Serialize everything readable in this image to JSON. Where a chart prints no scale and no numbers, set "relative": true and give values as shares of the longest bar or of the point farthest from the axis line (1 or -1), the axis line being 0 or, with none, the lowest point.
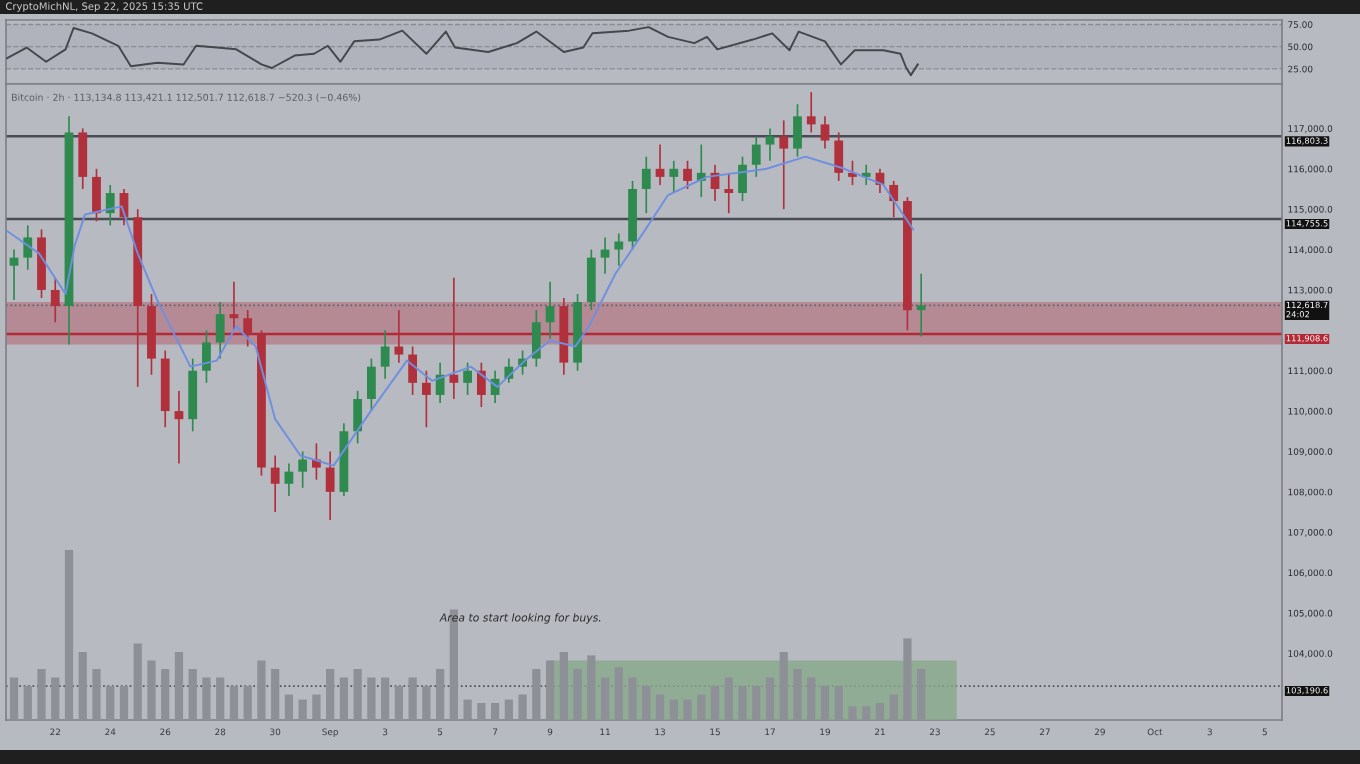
{
  "chart_data": [
    {
      "type": "line",
      "title": "CryptoMichNL, Sep 22, 2025 15:35 UTC",
      "xlim": [
        "2025-08-20T05:00",
        "2025-10-05T15:00"
      ],
      "ylim": [
        8,
        80
      ],
      "yticks": [
        {
          "value": 25,
          "label": "25.00"
        },
        {
          "value": 50,
          "label": "50.00"
        },
        {
          "value": 75,
          "label": "75.00"
        }
      ],
      "grid": "y",
      "tick_labels": "y",
      "bands": [
        {
          "axis": "y",
          "from": 25,
          "to": 75,
          "color": "#aeb0b8"
        }
      ],
      "series": [
        {
          "color": "#45474d",
          "x": [
            "2025-08-20T06:00",
            "2025-08-20T23:00",
            "2025-08-21T16:00",
            "2025-08-22T09:00",
            "2025-08-22T16:00",
            "2025-08-23T08:00",
            "2025-08-24T07:00",
            "2025-08-24T18:00",
            "2025-08-25T17:00",
            "2025-08-26T16:00",
            "2025-08-27T03:00",
            "2025-08-27T21:00",
            "2025-08-28T14:00",
            "2025-08-29T12:00",
            "2025-08-29T21:00",
            "2025-08-30T17:00",
            "2025-08-31T10:00",
            "2025-08-31T22:00",
            "2025-09-01T09:00",
            "2025-09-01T21:00",
            "2025-09-02T19:00",
            "2025-09-03T15:00",
            "2025-09-04T12:00",
            "2025-09-05T05:00",
            "2025-09-05T13:00",
            "2025-09-06T18:00",
            "2025-09-07T19:00",
            "2025-09-08T12:00",
            "2025-09-09T12:00",
            "2025-09-10T05:00",
            "2025-09-10T13:00",
            "2025-09-11T21:00",
            "2025-09-12T14:00",
            "2025-09-13T07:00",
            "2025-09-14T06:00",
            "2025-09-14T17:00",
            "2025-09-15T02:00",
            "2025-09-16T09:00",
            "2025-09-17T02:00",
            "2025-09-17T17:00",
            "2025-09-18T01:00",
            "2025-09-19T00:00",
            "2025-09-19T14:00",
            "2025-09-20T02:00",
            "2025-09-21T03:00",
            "2025-09-21T18:00",
            "2025-09-21T23:00",
            "2025-09-22T03:00",
            "2025-09-22T09:00"
          ],
          "values": [
            37,
            49,
            33,
            47,
            71,
            65,
            51,
            28,
            32,
            30,
            51,
            49,
            47,
            30,
            26,
            40,
            42,
            51,
            33,
            56,
            58,
            68,
            42,
            67,
            49,
            44,
            54,
            67,
            44,
            49,
            65,
            68,
            72,
            61,
            54,
            61,
            47,
            58,
            65,
            46,
            67,
            56,
            30,
            46,
            46,
            42,
            26,
            18,
            30
          ]
        }
      ]
    },
    {
      "type": "candlestick",
      "subtitle": "Bitcoin · 2h · 113,134.8 113,421.1 112,501.7 112,618.7 −520.3 (−0.46%)",
      "xlim": [
        "2025-08-20T05:00",
        "2025-10-05T15:00"
      ],
      "ylim": [
        102350,
        118100
      ],
      "xticks": [
        {
          "value": "2025-08-22",
          "label": "22"
        },
        {
          "value": "2025-08-24",
          "label": "24"
        },
        {
          "value": "2025-08-26",
          "label": "26"
        },
        {
          "value": "2025-08-28",
          "label": "28"
        },
        {
          "value": "2025-08-30",
          "label": "30"
        },
        {
          "value": "2025-09-01",
          "label": "Sep"
        },
        {
          "value": "2025-09-03",
          "label": "3"
        },
        {
          "value": "2025-09-05",
          "label": "5"
        },
        {
          "value": "2025-09-07",
          "label": "7"
        },
        {
          "value": "2025-09-09",
          "label": "9"
        },
        {
          "value": "2025-09-11",
          "label": "11"
        },
        {
          "value": "2025-09-13",
          "label": "13"
        },
        {
          "value": "2025-09-15",
          "label": "15"
        },
        {
          "value": "2025-09-17",
          "label": "17"
        },
        {
          "value": "2025-09-19",
          "label": "19"
        },
        {
          "value": "2025-09-21",
          "label": "21"
        },
        {
          "value": "2025-09-23",
          "label": "23"
        },
        {
          "value": "2025-09-25",
          "label": "25"
        },
        {
          "value": "2025-09-27",
          "label": "27"
        },
        {
          "value": "2025-09-29",
          "label": "29"
        },
        {
          "value": "2025-10-01",
          "label": "Oct"
        },
        {
          "value": "2025-10-03",
          "label": "3"
        },
        {
          "value": "2025-10-05",
          "label": "5"
        }
      ],
      "yticks": [
        {
          "value": 104000,
          "label": "104,000.0"
        },
        {
          "value": 105000,
          "label": "105,000.0"
        },
        {
          "value": 106000,
          "label": "106,000.0"
        },
        {
          "value": 107000,
          "label": "107,000.0"
        },
        {
          "value": 108000,
          "label": "108,000.0"
        },
        {
          "value": 109000,
          "label": "109,000.0"
        },
        {
          "value": 110000,
          "label": "110,000.0"
        },
        {
          "value": 111000,
          "label": "111,000.0"
        },
        {
          "value": 113000,
          "label": "113,000.0"
        },
        {
          "value": 114000,
          "label": "114,000.0"
        },
        {
          "value": 115000,
          "label": "115,000.0"
        },
        {
          "value": 116000,
          "label": "116,000.0"
        },
        {
          "value": 117000,
          "label": "117,000.0"
        }
      ],
      "grid": false,
      "bands": [
        {
          "axis": "y",
          "from": 111650,
          "to": 112700,
          "color": "#b57a84"
        }
      ],
      "ref_lines": [
        {
          "axis": "y",
          "value": 116803.3,
          "label": "116,803.3",
          "color": "#4a4c55",
          "line_style": "solid"
        },
        {
          "axis": "y",
          "value": 114755.5,
          "label": "114,755.5",
          "color": "#4a4c55",
          "line_style": "solid"
        },
        {
          "axis": "y",
          "value": 112618.7,
          "label": "112,618.7\n24:02",
          "color": "#5d6068",
          "line_style": "dotted"
        },
        {
          "axis": "y",
          "value": 111908.6,
          "label": "111,908.6",
          "color": "#b22a36",
          "line_style": "solid"
        },
        {
          "axis": "y",
          "value": 103190.6,
          "label": "103,190.6",
          "color": "#4e5058",
          "line_style": "dotted"
        }
      ],
      "x": [
        "2025-08-20T12:00",
        "2025-08-21T00:00",
        "2025-08-21T12:00",
        "2025-08-22T00:00",
        "2025-08-22T12:00",
        "2025-08-23T00:00",
        "2025-08-23T12:00",
        "2025-08-24T00:00",
        "2025-08-24T12:00",
        "2025-08-25T00:00",
        "2025-08-25T12:00",
        "2025-08-26T00:00",
        "2025-08-26T12:00",
        "2025-08-27T00:00",
        "2025-08-27T12:00",
        "2025-08-28T00:00",
        "2025-08-28T12:00",
        "2025-08-29T00:00",
        "2025-08-29T12:00",
        "2025-08-30T00:00",
        "2025-08-30T12:00",
        "2025-08-31T00:00",
        "2025-08-31T12:00",
        "2025-09-01T00:00",
        "2025-09-01T12:00",
        "2025-09-02T00:00",
        "2025-09-02T12:00",
        "2025-09-03T00:00",
        "2025-09-03T12:00",
        "2025-09-04T00:00",
        "2025-09-04T12:00",
        "2025-09-05T00:00",
        "2025-09-05T12:00",
        "2025-09-06T00:00",
        "2025-09-06T12:00",
        "2025-09-07T00:00",
        "2025-09-07T12:00",
        "2025-09-08T00:00",
        "2025-09-08T12:00",
        "2025-09-09T00:00",
        "2025-09-09T12:00",
        "2025-09-10T00:00",
        "2025-09-10T12:00",
        "2025-09-11T00:00",
        "2025-09-11T12:00",
        "2025-09-12T00:00",
        "2025-09-12T12:00",
        "2025-09-13T00:00",
        "2025-09-13T12:00",
        "2025-09-14T00:00",
        "2025-09-14T12:00",
        "2025-09-15T00:00",
        "2025-09-15T12:00",
        "2025-09-16T00:00",
        "2025-09-16T12:00",
        "2025-09-17T00:00",
        "2025-09-17T12:00",
        "2025-09-18T00:00",
        "2025-09-18T12:00",
        "2025-09-19T00:00",
        "2025-09-19T12:00",
        "2025-09-20T00:00",
        "2025-09-20T12:00",
        "2025-09-21T00:00",
        "2025-09-21T12:00",
        "2025-09-22T00:00",
        "2025-09-22T12:00"
      ],
      "ohlc": [
        [
          113600,
          114000,
          112750,
          113800
        ],
        [
          113800,
          114600,
          113500,
          114300
        ],
        [
          114300,
          114500,
          112800,
          113000
        ],
        [
          113000,
          113300,
          112200,
          112600
        ],
        [
          112600,
          117300,
          111650,
          116900
        ],
        [
          116900,
          117000,
          115500,
          115800
        ],
        [
          115800,
          116000,
          114700,
          114900
        ],
        [
          114900,
          115600,
          114600,
          115400
        ],
        [
          115400,
          115500,
          114600,
          114800
        ],
        [
          114800,
          115000,
          110600,
          112600
        ],
        [
          112600,
          112900,
          110900,
          111300
        ],
        [
          111300,
          111500,
          109600,
          110000
        ],
        [
          110000,
          110500,
          108700,
          109800
        ],
        [
          109800,
          111300,
          109500,
          111000
        ],
        [
          111000,
          112000,
          110700,
          111700
        ],
        [
          111700,
          112700,
          111300,
          112400
        ],
        [
          112400,
          113200,
          112000,
          112300
        ],
        [
          112300,
          112500,
          111600,
          111900
        ],
        [
          111900,
          112000,
          108400,
          108600
        ],
        [
          108600,
          108900,
          107500,
          108200
        ],
        [
          108200,
          108700,
          107900,
          108500
        ],
        [
          108500,
          109000,
          108100,
          108800
        ],
        [
          108800,
          109200,
          108300,
          108600
        ],
        [
          108600,
          109000,
          107300,
          108000
        ],
        [
          108000,
          109700,
          107900,
          109500
        ],
        [
          109500,
          110500,
          109200,
          110300
        ],
        [
          110300,
          111300,
          110000,
          111100
        ],
        [
          111100,
          112000,
          110800,
          111600
        ],
        [
          111600,
          112500,
          111200,
          111400
        ],
        [
          111400,
          111600,
          110400,
          110700
        ],
        [
          110700,
          111000,
          109600,
          110400
        ],
        [
          110400,
          111200,
          110200,
          110900
        ],
        [
          110900,
          113300,
          110300,
          110700
        ],
        [
          110700,
          111200,
          110400,
          111000
        ],
        [
          111000,
          111200,
          110100,
          110400
        ],
        [
          110400,
          111000,
          110200,
          110800
        ],
        [
          110800,
          111300,
          110700,
          111100
        ],
        [
          111100,
          111500,
          110900,
          111300
        ],
        [
          111300,
          112500,
          111100,
          112200
        ],
        [
          112200,
          113200,
          111800,
          112600
        ],
        [
          112600,
          112800,
          110900,
          111200
        ],
        [
          111200,
          112900,
          111000,
          112700
        ],
        [
          112700,
          114000,
          112500,
          113800
        ],
        [
          113800,
          114300,
          113400,
          114000
        ],
        [
          114000,
          114400,
          113600,
          114200
        ],
        [
          114200,
          115700,
          114000,
          115500
        ],
        [
          115500,
          116300,
          114900,
          116000
        ],
        [
          116000,
          116600,
          115600,
          115800
        ],
        [
          115800,
          116200,
          115400,
          116000
        ],
        [
          116000,
          116200,
          115500,
          115700
        ],
        [
          115700,
          116600,
          115300,
          115900
        ],
        [
          115900,
          116100,
          115200,
          115500
        ],
        [
          115500,
          115900,
          114900,
          115400
        ],
        [
          115400,
          116300,
          115200,
          116100
        ],
        [
          116100,
          116800,
          115800,
          116600
        ],
        [
          116600,
          117000,
          116200,
          116800
        ],
        [
          116800,
          117200,
          115000,
          116500
        ],
        [
          116500,
          117600,
          116300,
          117300
        ],
        [
          117300,
          117900,
          116900,
          117100
        ],
        [
          117100,
          117300,
          116500,
          116700
        ],
        [
          116700,
          116900,
          115700,
          115900
        ],
        [
          115900,
          116200,
          115600,
          115800
        ],
        [
          115800,
          116100,
          115600,
          115900
        ],
        [
          115900,
          116000,
          115400,
          115600
        ],
        [
          115600,
          115700,
          114800,
          115200
        ],
        [
          115200,
          115300,
          112000,
          112500
        ],
        [
          112500,
          113400,
          111850,
          112618.7
        ]
      ],
      "colors": [
        "#2e8a4e",
        "#2e8a4e",
        "#b0303c",
        "#b0303c",
        "#2e8a4e",
        "#b0303c",
        "#b0303c",
        "#2e8a4e",
        "#b0303c",
        "#b0303c",
        "#b0303c",
        "#b0303c",
        "#b0303c",
        "#2e8a4e",
        "#2e8a4e",
        "#2e8a4e",
        "#b0303c",
        "#b0303c",
        "#b0303c",
        "#b0303c",
        "#2e8a4e",
        "#2e8a4e",
        "#b0303c",
        "#b0303c",
        "#2e8a4e",
        "#2e8a4e",
        "#2e8a4e",
        "#2e8a4e",
        "#b0303c",
        "#b0303c",
        "#b0303c",
        "#2e8a4e",
        "#b0303c",
        "#2e8a4e",
        "#b0303c",
        "#2e8a4e",
        "#2e8a4e",
        "#2e8a4e",
        "#2e8a4e",
        "#2e8a4e",
        "#b0303c",
        "#2e8a4e",
        "#2e8a4e",
        "#2e8a4e",
        "#2e8a4e",
        "#2e8a4e",
        "#2e8a4e",
        "#b0303c",
        "#2e8a4e",
        "#b0303c",
        "#2e8a4e",
        "#b0303c",
        "#b0303c",
        "#2e8a4e",
        "#2e8a4e",
        "#2e8a4e",
        "#b0303c",
        "#2e8a4e",
        "#b0303c",
        "#b0303c",
        "#b0303c",
        "#b0303c",
        "#2e8a4e",
        "#b0303c",
        "#b0303c",
        "#b0303c",
        "#2e8a4e"
      ],
      "series": [
        {
          "type": "line",
          "color": "#6f8fe0",
          "x": [
            "2025-08-20T05:00",
            "2025-08-21T10:00",
            "2025-08-22T09:00",
            "2025-08-22T17:00",
            "2025-08-23T02:00",
            "2025-08-24T10:00",
            "2025-08-25T00:00",
            "2025-08-25T17:00",
            "2025-08-26T22:00",
            "2025-08-27T21:00",
            "2025-08-28T14:00",
            "2025-08-29T07:00",
            "2025-08-30T00:00",
            "2025-08-30T22:00",
            "2025-09-01T03:00",
            "2025-09-02T09:00",
            "2025-09-03T19:00",
            "2025-09-04T17:00",
            "2025-09-06T03:00",
            "2025-09-07T02:00",
            "2025-09-08T02:00",
            "2025-09-09T00:00",
            "2025-09-09T22:00",
            "2025-09-10T10:00",
            "2025-09-11T09:00",
            "2025-09-12T09:00",
            "2025-09-13T07:00",
            "2025-09-14T17:00",
            "2025-09-16T21:00",
            "2025-09-18T07:00",
            "2025-09-19T17:00",
            "2025-09-21T03:00",
            "2025-09-22T05:00"
          ],
          "values": [
            114480,
            113900,
            112900,
            114100,
            114870,
            115070,
            113900,
            112750,
            111100,
            111250,
            112100,
            111600,
            109800,
            108900,
            108650,
            109900,
            111250,
            110750,
            111100,
            110600,
            111250,
            111750,
            111600,
            112100,
            113400,
            114400,
            115350,
            115800,
            116000,
            116300,
            116000,
            115600,
            114500
          ]
        }
      ]
    },
    {
      "type": "bar",
      "relative": true,
      "tick_labels": false,
      "color": "#8e9097",
      "xlim": [
        "2025-08-20T05:00",
        "2025-10-05T15:00"
      ],
      "annotations": [
        "Area to start looking for buys."
      ],
      "bands": [
        {
          "axis": "x",
          "from": "2025-09-09T00:00",
          "to": "2025-09-23T19:00",
          "color": "#86a98a"
        }
      ],
      "x": [
        "2025-08-20T12:00",
        "2025-08-21T00:00",
        "2025-08-21T12:00",
        "2025-08-22T00:00",
        "2025-08-22T12:00",
        "2025-08-23T00:00",
        "2025-08-23T12:00",
        "2025-08-24T00:00",
        "2025-08-24T12:00",
        "2025-08-25T00:00",
        "2025-08-25T12:00",
        "2025-08-26T00:00",
        "2025-08-26T12:00",
        "2025-08-27T00:00",
        "2025-08-27T12:00",
        "2025-08-28T00:00",
        "2025-08-28T12:00",
        "2025-08-29T00:00",
        "2025-08-29T12:00",
        "2025-08-30T00:00",
        "2025-08-30T12:00",
        "2025-08-31T00:00",
        "2025-08-31T12:00",
        "2025-09-01T00:00",
        "2025-09-01T12:00",
        "2025-09-02T00:00",
        "2025-09-02T12:00",
        "2025-09-03T00:00",
        "2025-09-03T12:00",
        "2025-09-04T00:00",
        "2025-09-04T12:00",
        "2025-09-05T00:00",
        "2025-09-05T12:00",
        "2025-09-06T00:00",
        "2025-09-06T12:00",
        "2025-09-07T00:00",
        "2025-09-07T12:00",
        "2025-09-08T00:00",
        "2025-09-08T12:00",
        "2025-09-09T00:00",
        "2025-09-09T12:00",
        "2025-09-10T00:00",
        "2025-09-10T12:00",
        "2025-09-11T00:00",
        "2025-09-11T12:00",
        "2025-09-12T00:00",
        "2025-09-12T12:00",
        "2025-09-13T00:00",
        "2025-09-13T12:00",
        "2025-09-14T00:00",
        "2025-09-14T12:00",
        "2025-09-15T00:00",
        "2025-09-15T12:00",
        "2025-09-16T00:00",
        "2025-09-16T12:00",
        "2025-09-17T00:00",
        "2025-09-17T12:00",
        "2025-09-18T00:00",
        "2025-09-18T12:00",
        "2025-09-19T00:00",
        "2025-09-19T12:00",
        "2025-09-20T00:00",
        "2025-09-20T12:00",
        "2025-09-21T00:00",
        "2025-09-21T12:00",
        "2025-09-22T00:00",
        "2025-09-22T12:00"
      ],
      "values": [
        0.25,
        0.2,
        0.3,
        0.25,
        1.0,
        0.4,
        0.3,
        0.2,
        0.2,
        0.45,
        0.35,
        0.3,
        0.4,
        0.3,
        0.25,
        0.25,
        0.2,
        0.2,
        0.35,
        0.3,
        0.15,
        0.12,
        0.15,
        0.3,
        0.25,
        0.3,
        0.25,
        0.25,
        0.2,
        0.25,
        0.2,
        0.3,
        0.65,
        0.12,
        0.1,
        0.1,
        0.12,
        0.15,
        0.3,
        0.35,
        0.4,
        0.3,
        0.38,
        0.25,
        0.31,
        0.25,
        0.2,
        0.15,
        0.12,
        0.12,
        0.15,
        0.2,
        0.25,
        0.2,
        0.2,
        0.25,
        0.4,
        0.3,
        0.25,
        0.2,
        0.2,
        0.08,
        0.08,
        0.1,
        0.15,
        0.48,
        0.3
      ]
    }
  ]
}
